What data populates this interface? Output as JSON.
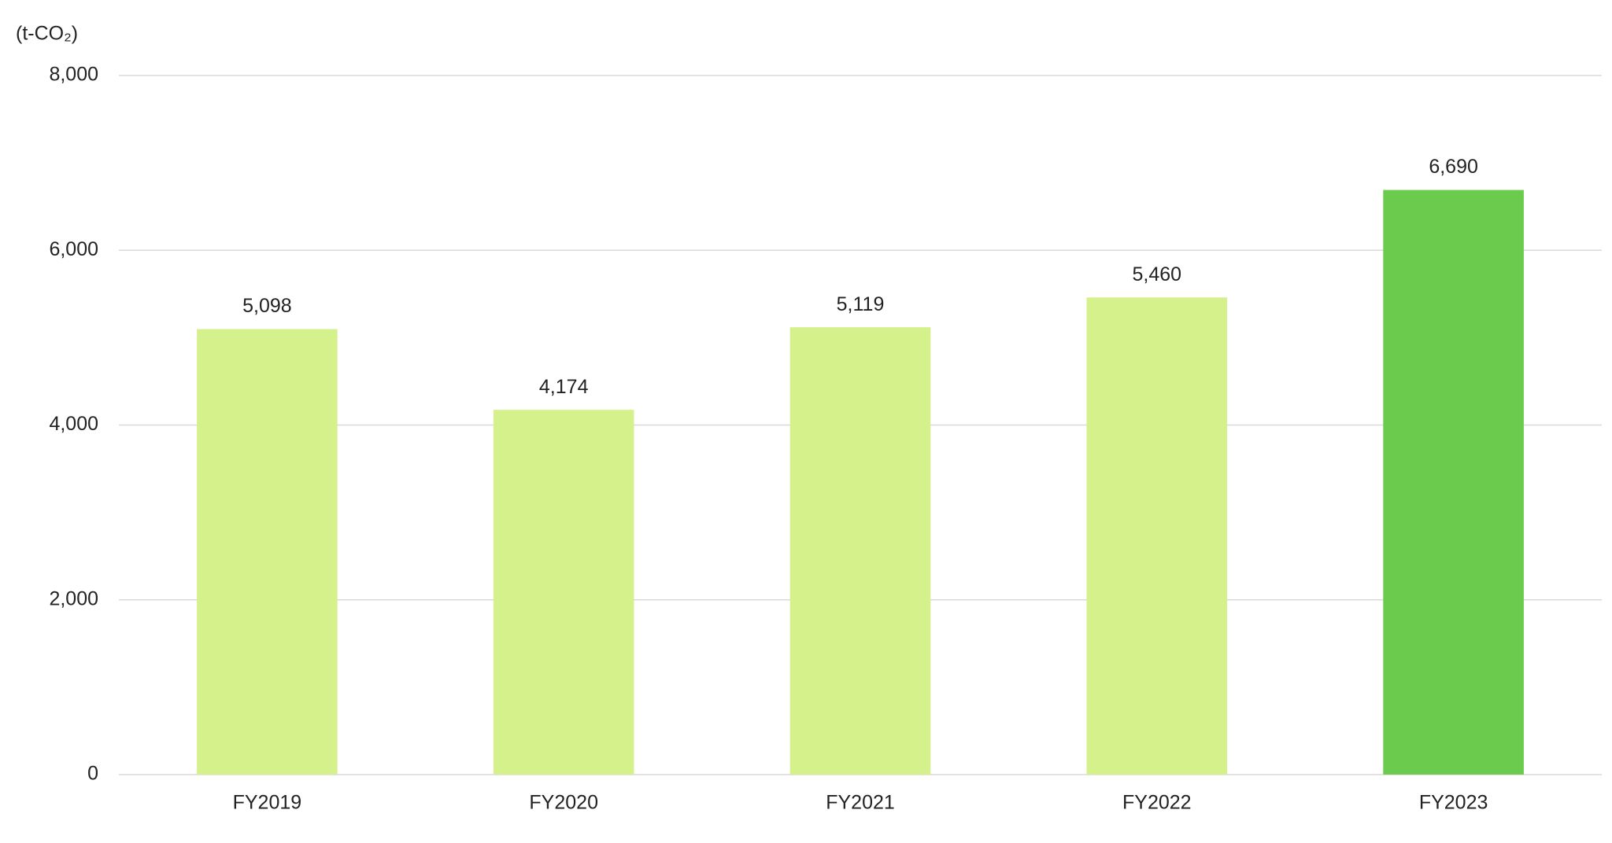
{
  "chart_data": {
    "type": "bar",
    "y_axis_label": "(t-CO₂)",
    "categories": [
      "FY2019",
      "FY2020",
      "FY2021",
      "FY2022",
      "FY2023"
    ],
    "values": [
      5098,
      4174,
      5119,
      5460,
      6690
    ],
    "value_labels": [
      "5,098",
      "4,174",
      "5,119",
      "5,460",
      "6,690"
    ],
    "colors": [
      "#d5f18b",
      "#d5f18b",
      "#d5f18b",
      "#d5f18b",
      "#6acb4c"
    ],
    "ylim": [
      0,
      8000
    ],
    "yticks": [
      0,
      {
        "value": 2000,
        "label": "2,000"
      },
      {
        "value": 4000,
        "label": "4,000"
      },
      {
        "value": 6000,
        "label": "6,000"
      },
      {
        "value": 8000,
        "label": "8,000"
      }
    ],
    "grid": true
  }
}
